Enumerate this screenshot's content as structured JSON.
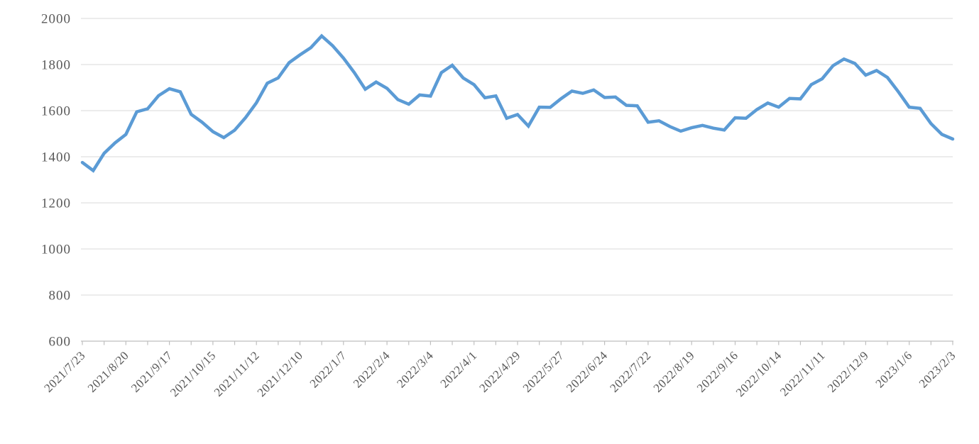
{
  "chart_data": {
    "type": "line",
    "title": "",
    "xlabel": "",
    "ylabel": "",
    "ylim": [
      600,
      2000
    ],
    "ytick_step": 200,
    "ytick_labels": [
      "600",
      "800",
      "1000",
      "1200",
      "1400",
      "1600",
      "1800",
      "2000"
    ],
    "x_tick_labels": [
      "2021/7/23",
      "2021/8/20",
      "2021/9/17",
      "2021/10/15",
      "2021/11/12",
      "2021/12/10",
      "2022/1/7",
      "2022/2/4",
      "2022/3/4",
      "2022/4/1",
      "2022/4/29",
      "2022/5/27",
      "2022/6/24",
      "2022/7/22",
      "2022/8/19",
      "2022/9/16",
      "2022/10/14",
      "2022/11/11",
      "2022/12/9",
      "2023/1/6",
      "2023/2/3"
    ],
    "points_per_label": 4,
    "minor_tick_every_points": 2,
    "x_point_interval": "weekly",
    "grid": "horizontal-on",
    "legend": "none",
    "values": [
      1375,
      1340,
      1415,
      1460,
      1497,
      1595,
      1608,
      1665,
      1695,
      1682,
      1584,
      1550,
      1509,
      1483,
      1515,
      1570,
      1634,
      1719,
      1742,
      1808,
      1842,
      1873,
      1924,
      1882,
      1828,
      1765,
      1693,
      1724,
      1697,
      1648,
      1628,
      1668,
      1663,
      1765,
      1797,
      1742,
      1713,
      1656,
      1664,
      1567,
      1583,
      1533,
      1615,
      1614,
      1652,
      1685,
      1675,
      1690,
      1657,
      1659,
      1623,
      1621,
      1550,
      1556,
      1531,
      1511,
      1526,
      1536,
      1524,
      1516,
      1569,
      1567,
      1605,
      1633,
      1615,
      1653,
      1651,
      1713,
      1738,
      1795,
      1824,
      1805,
      1754,
      1774,
      1744,
      1682,
      1615,
      1610,
      1544,
      1497,
      1477
    ]
  },
  "style": {
    "line_color": "#5B9BD5",
    "gridline_color": "#D9D9D9",
    "axis_color": "#BFBFBF",
    "label_color": "#595959",
    "background": "#FFFFFF"
  }
}
